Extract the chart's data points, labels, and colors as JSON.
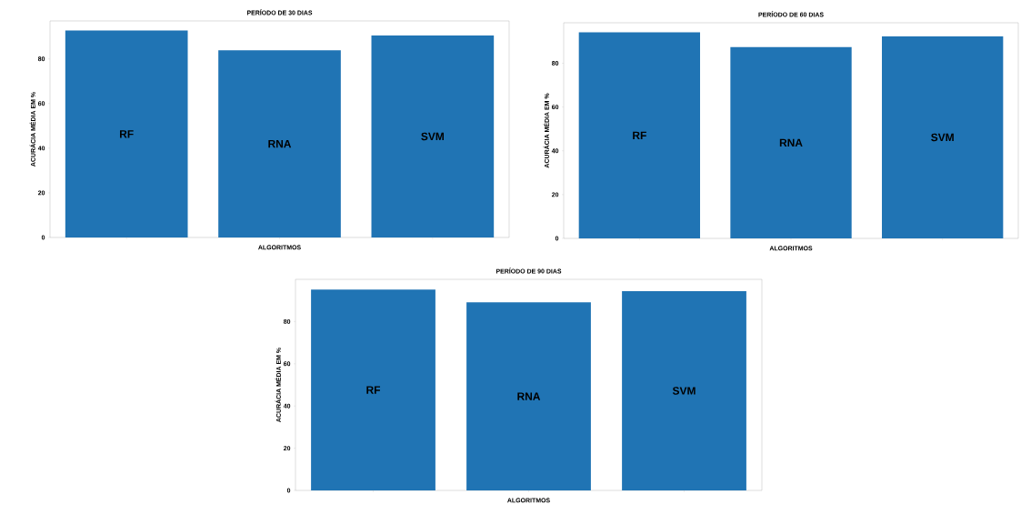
{
  "chart_data": [
    {
      "type": "bar",
      "title": "PERÍODO DE 30 DIAS",
      "xlabel": "ALGORITMOS",
      "ylabel": "ACURÁCIA MÉDIA EM %",
      "categories": [
        "RF",
        "RNA",
        "SVM"
      ],
      "values": [
        92.7,
        83.9,
        90.5
      ],
      "color": "#2074b4",
      "ylim": [
        0,
        97
      ],
      "yticks": [
        0,
        20,
        40,
        60,
        80
      ]
    },
    {
      "type": "bar",
      "title": "PERÍODO DE 60 DIAS",
      "xlabel": "ALGORITMOS",
      "ylabel": "ACURÁCIA MÉDIA EM %",
      "categories": [
        "RF",
        "RNA",
        "SVM"
      ],
      "values": [
        94.1,
        87.4,
        92.3
      ],
      "color": "#2074b4",
      "ylim": [
        0,
        98.5
      ],
      "yticks": [
        0,
        20,
        40,
        60,
        80
      ]
    },
    {
      "type": "bar",
      "title": "PERÍODO DE 90 DIAS",
      "xlabel": "ALGORITMOS",
      "ylabel": "ACURÁCIA MÉDIA EM %",
      "categories": [
        "RF",
        "RNA",
        "SVM"
      ],
      "values": [
        95.2,
        89.1,
        94.4
      ],
      "color": "#2074b4",
      "ylim": [
        0,
        100
      ],
      "yticks": [
        0,
        20,
        40,
        60,
        80
      ]
    }
  ]
}
